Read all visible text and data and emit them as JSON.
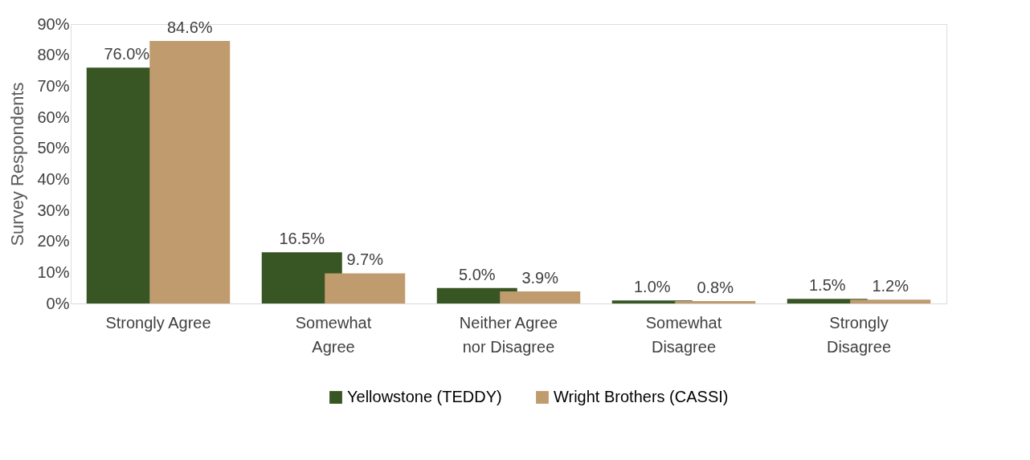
{
  "chart_data": {
    "type": "bar",
    "ylabel": "Survey Respondents",
    "categories": [
      "Strongly Agree",
      "Somewhat\nAgree",
      "Neither Agree\nnor Disagree",
      "Somewhat\nDisagree",
      "Strongly\nDisagree"
    ],
    "series": [
      {
        "name": "Yellowstone (TEDDY)",
        "color": "#375623",
        "values": [
          76.0,
          16.5,
          5.0,
          1.0,
          1.5
        ],
        "value_labels": [
          "76.0%",
          "16.5%",
          "5.0%",
          "1.0%",
          "1.5%"
        ]
      },
      {
        "name": "Wright Brothers (CASSI)",
        "color": "#c09b6e",
        "values": [
          84.6,
          9.7,
          3.9,
          0.8,
          1.2
        ],
        "value_labels": [
          "84.6%",
          "9.7%",
          "3.9%",
          "0.8%",
          "1.2%"
        ]
      }
    ],
    "ylim": [
      0,
      90
    ],
    "yticks": [
      {
        "value": 0,
        "label": "0%"
      },
      {
        "value": 10,
        "label": "10%"
      },
      {
        "value": 20,
        "label": "20%"
      },
      {
        "value": 30,
        "label": "30%"
      },
      {
        "value": 40,
        "label": "40%"
      },
      {
        "value": 50,
        "label": "50%"
      },
      {
        "value": 60,
        "label": "60%"
      },
      {
        "value": 70,
        "label": "70%"
      },
      {
        "value": 80,
        "label": "80%"
      },
      {
        "value": 90,
        "label": "90%"
      }
    ],
    "grid": false,
    "legend": "bottom"
  }
}
